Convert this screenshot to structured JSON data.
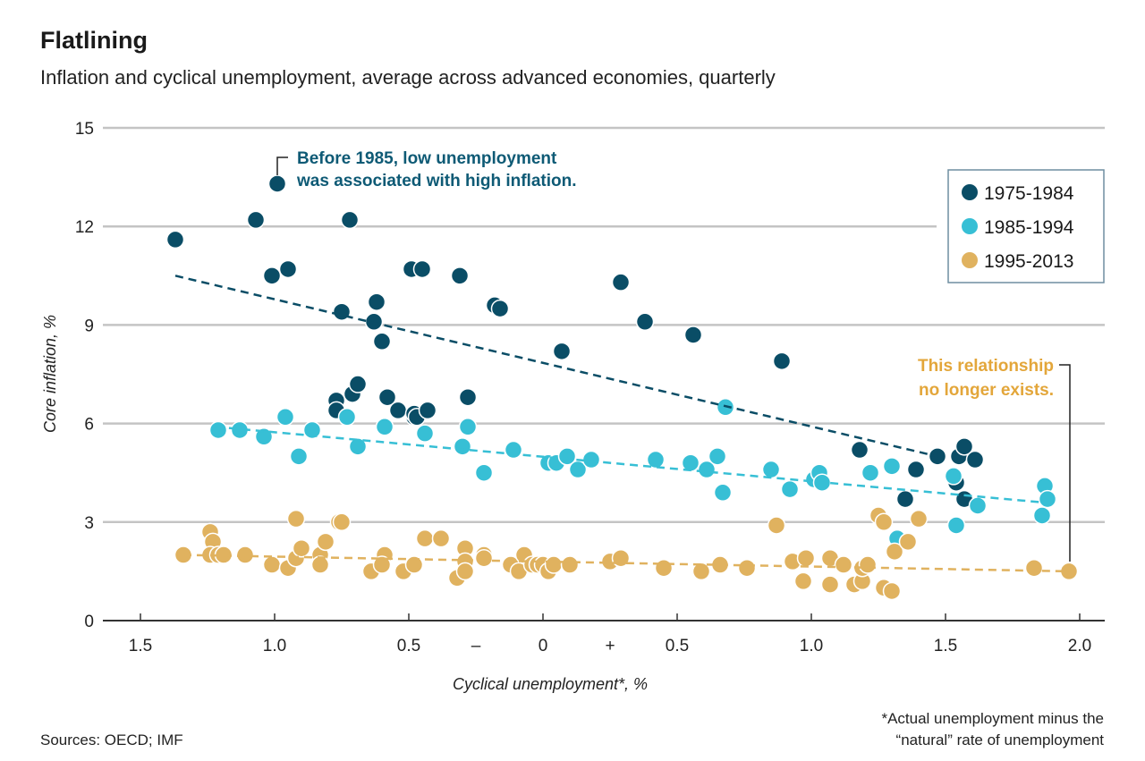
{
  "title": "Flatlining",
  "subtitle": "Inflation and cyclical unemployment, average across advanced economies, quarterly",
  "source": "Sources: OECD; IMF",
  "footnote": [
    "*Actual unemployment minus the",
    "“natural” rate of unemployment"
  ],
  "colors": {
    "s1": "#0a4d66",
    "s2": "#37bfd5",
    "s3": "#e0b25f",
    "ann1": "#0e5a75",
    "ann2": "#e3a63a",
    "grid": "#c4c4c4"
  },
  "chart_data": {
    "type": "scatter",
    "title": "Flatlining",
    "xlabel": "Cyclical unemployment*, %",
    "ylabel": "Core inflation, %",
    "xlim": [
      -1.5,
      2.0
    ],
    "ylim": [
      0,
      15
    ],
    "grid": true,
    "legend_position": "top-right",
    "x_ticks": [
      {
        "v": -1.5,
        "label": "1.5"
      },
      {
        "v": -1.0,
        "label": "1.0"
      },
      {
        "v": -0.5,
        "label": "0.5"
      },
      {
        "v": -0.25,
        "label": "–"
      },
      {
        "v": 0,
        "label": "0"
      },
      {
        "v": 0.25,
        "label": "+"
      },
      {
        "v": 0.5,
        "label": "0.5"
      },
      {
        "v": 1.0,
        "label": "1.0"
      },
      {
        "v": 1.5,
        "label": "1.5"
      },
      {
        "v": 2.0,
        "label": "2.0"
      }
    ],
    "y_ticks": [
      0,
      3,
      6,
      9,
      12,
      15
    ],
    "annotations": [
      {
        "lines": [
          "Before 1985, low unemployment",
          "was associated with high inflation."
        ],
        "series": 0
      },
      {
        "lines": [
          "This relationship",
          "no longer exists."
        ],
        "series": 2
      }
    ],
    "series": [
      {
        "name": "1975-1984",
        "trend": [
          [
            -1.37,
            10.5
          ],
          [
            1.47,
            5.0
          ]
        ],
        "points": [
          [
            -1.37,
            11.6
          ],
          [
            -1.07,
            12.2
          ],
          [
            -0.99,
            13.3
          ],
          [
            -1.01,
            10.5
          ],
          [
            -0.95,
            10.7
          ],
          [
            -0.72,
            12.2
          ],
          [
            -0.75,
            9.4
          ],
          [
            -0.62,
            9.7
          ],
          [
            -0.63,
            9.1
          ],
          [
            -0.6,
            8.5
          ],
          [
            -0.49,
            10.7
          ],
          [
            -0.45,
            10.7
          ],
          [
            -0.31,
            10.5
          ],
          [
            -0.18,
            9.6
          ],
          [
            -0.16,
            9.5
          ],
          [
            0.07,
            8.2
          ],
          [
            0.29,
            10.3
          ],
          [
            0.38,
            9.1
          ],
          [
            0.56,
            8.7
          ],
          [
            0.89,
            7.9
          ],
          [
            -0.77,
            6.7
          ],
          [
            -0.77,
            6.4
          ],
          [
            -0.71,
            6.9
          ],
          [
            -0.69,
            7.2
          ],
          [
            -0.58,
            6.8
          ],
          [
            -0.54,
            6.4
          ],
          [
            -0.48,
            6.2
          ],
          [
            -0.48,
            6.3
          ],
          [
            -0.47,
            6.2
          ],
          [
            -0.43,
            6.4
          ],
          [
            -0.28,
            6.8
          ],
          [
            1.18,
            5.2
          ],
          [
            1.39,
            4.6
          ],
          [
            1.35,
            3.7
          ],
          [
            1.47,
            5.0
          ],
          [
            1.54,
            4.2
          ],
          [
            1.55,
            5.0
          ],
          [
            1.57,
            5.3
          ],
          [
            1.61,
            4.9
          ],
          [
            1.57,
            3.7
          ]
        ]
      },
      {
        "name": "1985-1994",
        "trend": [
          [
            -1.22,
            5.9
          ],
          [
            1.86,
            3.6
          ]
        ],
        "points": [
          [
            -1.21,
            5.8
          ],
          [
            -1.13,
            5.8
          ],
          [
            -1.04,
            5.6
          ],
          [
            -0.96,
            6.2
          ],
          [
            -0.91,
            5.0
          ],
          [
            -0.86,
            5.8
          ],
          [
            -0.73,
            6.2
          ],
          [
            -0.69,
            5.3
          ],
          [
            -0.59,
            5.9
          ],
          [
            -0.44,
            5.7
          ],
          [
            -0.3,
            5.3
          ],
          [
            -0.28,
            5.9
          ],
          [
            -0.22,
            4.5
          ],
          [
            -0.11,
            5.2
          ],
          [
            0.02,
            4.8
          ],
          [
            0.05,
            4.8
          ],
          [
            0.09,
            5.0
          ],
          [
            0.13,
            4.6
          ],
          [
            0.18,
            4.9
          ],
          [
            0.42,
            4.9
          ],
          [
            0.55,
            4.8
          ],
          [
            0.61,
            4.6
          ],
          [
            0.65,
            5.0
          ],
          [
            0.67,
            3.9
          ],
          [
            0.68,
            6.5
          ],
          [
            0.85,
            4.6
          ],
          [
            0.92,
            4.0
          ],
          [
            1.01,
            4.3
          ],
          [
            1.03,
            4.5
          ],
          [
            1.04,
            4.2
          ],
          [
            1.22,
            4.5
          ],
          [
            1.3,
            4.7
          ],
          [
            1.32,
            2.5
          ],
          [
            1.53,
            4.4
          ],
          [
            1.54,
            2.9
          ],
          [
            1.62,
            3.5
          ],
          [
            1.86,
            3.2
          ],
          [
            1.87,
            4.1
          ],
          [
            1.88,
            3.7
          ]
        ]
      },
      {
        "name": "1995-2013",
        "trend": [
          [
            -1.34,
            2.0
          ],
          [
            1.96,
            1.5
          ]
        ],
        "points": [
          [
            -1.34,
            2.0
          ],
          [
            -1.24,
            2.7
          ],
          [
            -1.23,
            2.4
          ],
          [
            -1.24,
            2.0
          ],
          [
            -1.21,
            2.0
          ],
          [
            -1.19,
            2.0
          ],
          [
            -1.11,
            2.0
          ],
          [
            -1.01,
            1.7
          ],
          [
            -0.95,
            1.6
          ],
          [
            -0.92,
            3.1
          ],
          [
            -0.92,
            1.9
          ],
          [
            -0.9,
            2.2
          ],
          [
            -0.83,
            2.0
          ],
          [
            -0.83,
            1.7
          ],
          [
            -0.81,
            2.4
          ],
          [
            -0.76,
            3.0
          ],
          [
            -0.75,
            3.0
          ],
          [
            -0.64,
            1.5
          ],
          [
            -0.59,
            2.0
          ],
          [
            -0.6,
            1.7
          ],
          [
            -0.52,
            1.5
          ],
          [
            -0.48,
            1.7
          ],
          [
            -0.44,
            2.5
          ],
          [
            -0.38,
            2.5
          ],
          [
            -0.32,
            1.3
          ],
          [
            -0.29,
            2.2
          ],
          [
            -0.29,
            1.8
          ],
          [
            -0.29,
            1.5
          ],
          [
            -0.22,
            2.0
          ],
          [
            -0.22,
            1.9
          ],
          [
            -0.12,
            1.7
          ],
          [
            -0.09,
            1.5
          ],
          [
            -0.07,
            2.0
          ],
          [
            -0.04,
            1.7
          ],
          [
            -0.02,
            1.7
          ],
          [
            0.0,
            1.7
          ],
          [
            0.02,
            1.5
          ],
          [
            0.04,
            1.7
          ],
          [
            0.1,
            1.7
          ],
          [
            0.25,
            1.8
          ],
          [
            0.29,
            1.9
          ],
          [
            0.45,
            1.6
          ],
          [
            0.59,
            1.5
          ],
          [
            0.66,
            1.7
          ],
          [
            0.76,
            1.6
          ],
          [
            0.87,
            2.9
          ],
          [
            0.93,
            1.8
          ],
          [
            0.97,
            1.2
          ],
          [
            0.98,
            1.9
          ],
          [
            1.07,
            1.9
          ],
          [
            1.07,
            1.1
          ],
          [
            1.12,
            1.7
          ],
          [
            1.16,
            1.1
          ],
          [
            1.19,
            1.2
          ],
          [
            1.19,
            1.6
          ],
          [
            1.21,
            1.7
          ],
          [
            1.25,
            3.2
          ],
          [
            1.27,
            3.0
          ],
          [
            1.27,
            1.0
          ],
          [
            1.3,
            0.9
          ],
          [
            1.31,
            2.1
          ],
          [
            1.36,
            2.4
          ],
          [
            1.4,
            3.1
          ],
          [
            1.83,
            1.6
          ],
          [
            1.96,
            1.5
          ]
        ]
      }
    ]
  }
}
